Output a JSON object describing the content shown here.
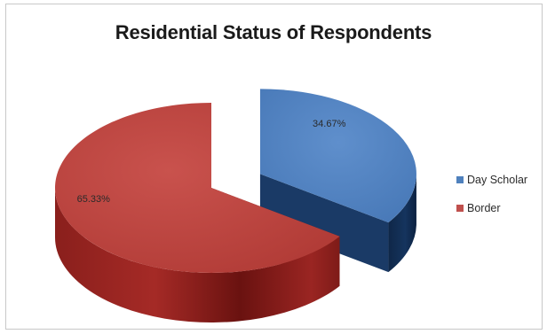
{
  "chart_data": {
    "type": "pie",
    "title": "Residential Status of Respondents",
    "categories": [
      "Day Scholar",
      "Border"
    ],
    "values": [
      34.67,
      65.33
    ],
    "data_labels": [
      "34.67%",
      "65.33%"
    ],
    "legend_position": "right",
    "exploded": true,
    "three_d": true,
    "colors": [
      "#4f81bd",
      "#c0504d"
    ]
  }
}
